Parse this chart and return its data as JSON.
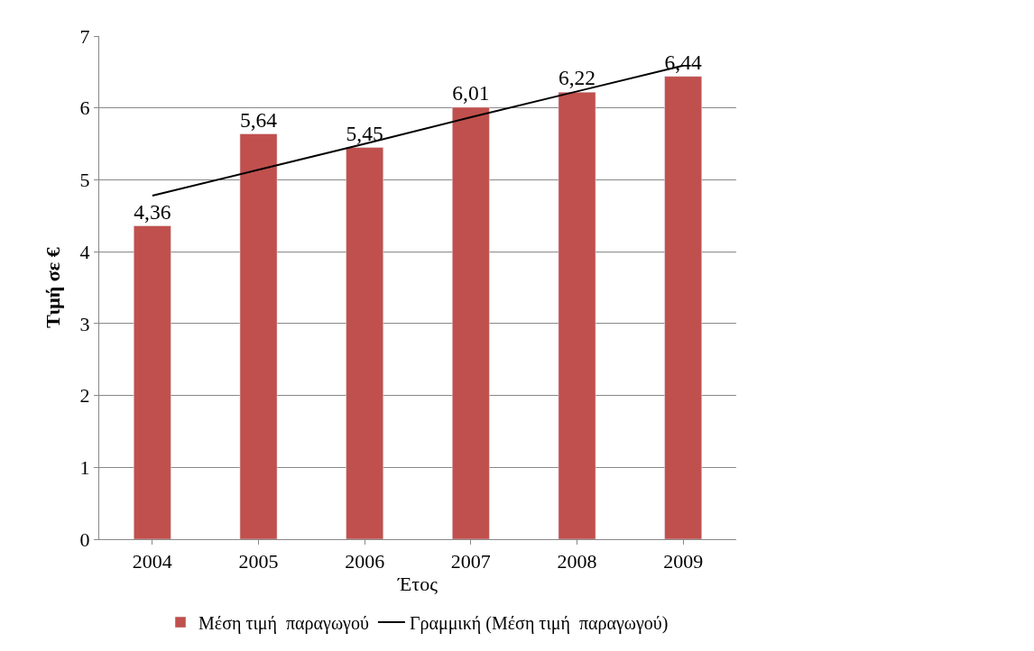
{
  "chart_data": {
    "type": "bar",
    "xlabel": "Έτος",
    "ylabel": "Τιμή σε €",
    "categories": [
      "2004",
      "2005",
      "2006",
      "2007",
      "2008",
      "2009"
    ],
    "series": [
      {
        "name": "Μέση τιμή  παραγωγού",
        "color": "#c0504d",
        "values": [
          4.36,
          5.64,
          5.45,
          6.01,
          6.22,
          6.44
        ],
        "value_labels": [
          "4,36",
          "5,64",
          "5,45",
          "6,01",
          "6,22",
          "6,44"
        ]
      },
      {
        "name": "Γραμμική (Μέση τιμή  παραγωγού)",
        "type": "line",
        "color": "#000000",
        "values": [
          4.78,
          5.14,
          5.5,
          5.87,
          6.23,
          6.59
        ]
      }
    ],
    "ylim": [
      0,
      7
    ],
    "yticks": [
      0,
      1,
      2,
      3,
      4,
      5,
      6,
      7
    ],
    "grid": "y",
    "legend": "bottom",
    "marker": "none",
    "line_style": "solid"
  }
}
